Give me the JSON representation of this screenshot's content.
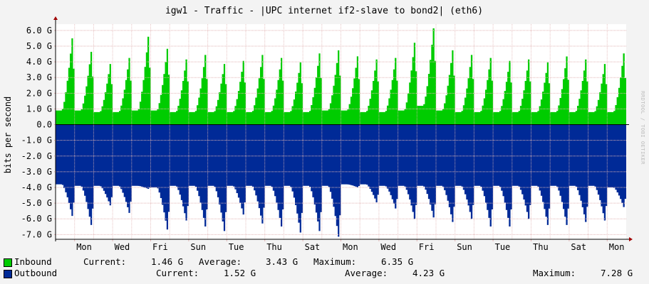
{
  "title": "igw1 - Traffic - |UPC internet if2-slave to bond2| (eth6)",
  "vertical_label": "bits per second",
  "watermark": "RRDTOOL / TOBI OETIKER",
  "colors": {
    "background": "#f3f3f3",
    "canvas": "#ffffff",
    "inbound": "#00cc00",
    "outbound": "#002a97",
    "grid": "#e2b5b5",
    "axis": "#000000",
    "arrow": "#a00000"
  },
  "legend": [
    {
      "key": "inbound",
      "name": "Inbound",
      "current_label": "Current:",
      "current_value": "1.46 G",
      "average_label": "Average:",
      "average_value": "3.43 G",
      "maximum_label": "Maximum:",
      "maximum_value": "6.35 G"
    },
    {
      "key": "outbound",
      "name": "Outbound",
      "current_label": "Current:",
      "current_value": "1.52 G",
      "average_label": "Average:",
      "average_value": "4.23 G",
      "maximum_label": "Maximum:",
      "maximum_value": "7.28 G"
    }
  ],
  "chart_data": {
    "type": "area",
    "title": "igw1 - Traffic - |UPC internet if2-slave to bond2| (eth6)",
    "ylabel": "bits per second",
    "ylim": [
      -7.3,
      6.4
    ],
    "y_ticks": [
      {
        "value": 6,
        "label": "6.0 G"
      },
      {
        "value": 5,
        "label": "5.0 G"
      },
      {
        "value": 4,
        "label": "4.0 G"
      },
      {
        "value": 3,
        "label": "3.0 G"
      },
      {
        "value": 2,
        "label": "2.0 G"
      },
      {
        "value": 1,
        "label": "1.0 G"
      },
      {
        "value": 0,
        "label": "0.0"
      },
      {
        "value": -1,
        "label": "-1.0 G"
      },
      {
        "value": -2,
        "label": "-2.0 G"
      },
      {
        "value": -3,
        "label": "-3.0 G"
      },
      {
        "value": -4,
        "label": "-4.0 G"
      },
      {
        "value": -5,
        "label": "-5.0 G"
      },
      {
        "value": -6,
        "label": "-6.0 G"
      },
      {
        "value": -7,
        "label": "-7.0 G"
      }
    ],
    "x_ticks": [
      "Mon",
      "Wed",
      "Fri",
      "Sun",
      "Tue",
      "Thu",
      "Sat",
      "Mon",
      "Wed",
      "Fri",
      "Sun",
      "Tue",
      "Thu",
      "Sat",
      "Mon"
    ],
    "x_tick_interval_days": 2,
    "x_range_days": [
      0,
      30
    ],
    "x_first_tick_day": 1,
    "grid": true,
    "legend_position": "bottom",
    "series": [
      {
        "name": "Inbound",
        "unit": "G",
        "daily_peaks": [
          5.7,
          4.8,
          4.0,
          4.4,
          5.8,
          5.0,
          4.3,
          4.6,
          4.0,
          4.2,
          4.6,
          4.4,
          4.1,
          4.7,
          4.9,
          4.5,
          4.3,
          4.4,
          5.4,
          6.35,
          4.9,
          4.6,
          4.4,
          4.2,
          4.3,
          4.1,
          4.5,
          4.3,
          4.0,
          4.7
        ],
        "daily_troughs": [
          0.9,
          0.9,
          0.8,
          0.8,
          0.9,
          0.9,
          0.8,
          0.8,
          0.8,
          0.8,
          0.8,
          0.8,
          0.8,
          0.8,
          0.9,
          0.9,
          0.8,
          0.8,
          0.9,
          1.2,
          0.9,
          0.8,
          0.8,
          0.8,
          0.8,
          0.8,
          0.8,
          0.8,
          0.8,
          0.8
        ],
        "current": 1.46,
        "average": 3.43,
        "maximum": 6.35
      },
      {
        "name": "Outbound",
        "unit": "G",
        "daily_peaks": [
          -5.9,
          -6.5,
          -5.2,
          -5.7,
          -4.1,
          -6.8,
          -6.2,
          -6.6,
          -6.9,
          -5.8,
          -6.4,
          -6.6,
          -7.0,
          -6.9,
          -7.28,
          -4.0,
          -5.0,
          -5.4,
          -6.1,
          -6.0,
          -6.3,
          -6.1,
          -6.6,
          -6.6,
          -6.1,
          -6.5,
          -6.5,
          -6.3,
          -6.2,
          -5.3
        ],
        "daily_troughs": [
          -3.8,
          -3.9,
          -3.9,
          -3.9,
          -3.9,
          -4.0,
          -3.9,
          -3.9,
          -3.9,
          -3.9,
          -3.9,
          -3.9,
          -3.9,
          -3.9,
          -3.9,
          -3.8,
          -3.8,
          -3.9,
          -3.9,
          -3.9,
          -3.9,
          -3.9,
          -3.9,
          -3.9,
          -3.9,
          -3.9,
          -3.9,
          -3.9,
          -3.9,
          -4.0
        ],
        "current": -1.52,
        "average": -4.23,
        "maximum": -7.28
      }
    ]
  }
}
